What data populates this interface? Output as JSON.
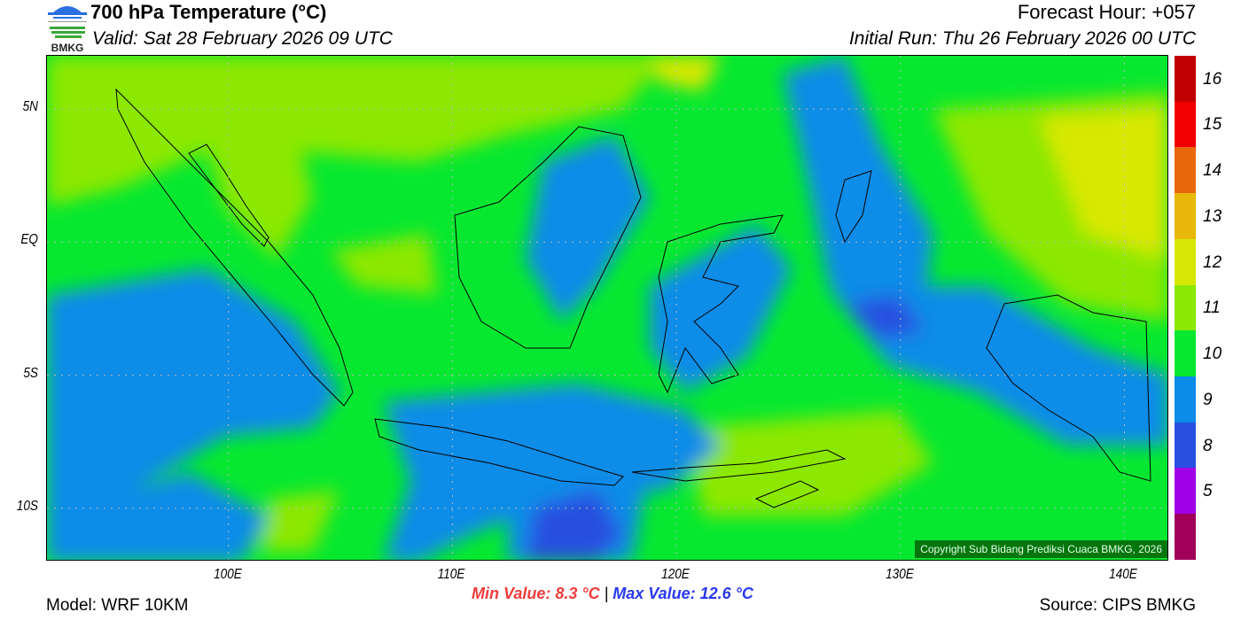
{
  "header": {
    "title": "700 hPa Temperature (°C)",
    "valid": "Valid: Sat 28 February 2026 09 UTC",
    "forecast_hour": "Forecast Hour: +057",
    "initial_run": "Initial Run: Thu 26 February 2026 00 UTC",
    "logo_text": "BMKG"
  },
  "map": {
    "lon_ticks": [
      {
        "value": 100,
        "label": "100E"
      },
      {
        "value": 110,
        "label": "110E"
      },
      {
        "value": 120,
        "label": "120E"
      },
      {
        "value": 130,
        "label": "130E"
      },
      {
        "value": 140,
        "label": "140E"
      }
    ],
    "lat_ticks": [
      {
        "value": 5,
        "label": "5N"
      },
      {
        "value": 0,
        "label": "EQ"
      },
      {
        "value": -5,
        "label": "5S"
      },
      {
        "value": -10,
        "label": "10S"
      }
    ],
    "lon_range": [
      91.9,
      142.0
    ],
    "lat_range": [
      -12.0,
      7.0
    ],
    "copyright": "Copyright Sub Bidang Prediksi Cuaca BMKG, 2026"
  },
  "colorbar": {
    "segments": [
      {
        "color": "#c00000",
        "label": "16"
      },
      {
        "color": "#f20000",
        "label": "15"
      },
      {
        "color": "#e8680a",
        "label": "14"
      },
      {
        "color": "#e8b80a",
        "label": "13"
      },
      {
        "color": "#d8e806",
        "label": "12"
      },
      {
        "color": "#8ce806",
        "label": "11"
      },
      {
        "color": "#06e830",
        "label": "10"
      },
      {
        "color": "#0a8ce8",
        "label": "9"
      },
      {
        "color": "#2850e0",
        "label": "8"
      },
      {
        "color": "#a000e8",
        "label": "5"
      },
      {
        "color": "#a0005a",
        "label": ""
      }
    ]
  },
  "footer": {
    "model": "Model: WRF 10KM",
    "min_value": "Min Value: 8.3 °C",
    "separator": "|",
    "max_value": "Max Value: 12.6 °C",
    "source": "Source: CIPS BMKG",
    "min_color": "#f03c3c",
    "max_color": "#2838f0"
  }
}
